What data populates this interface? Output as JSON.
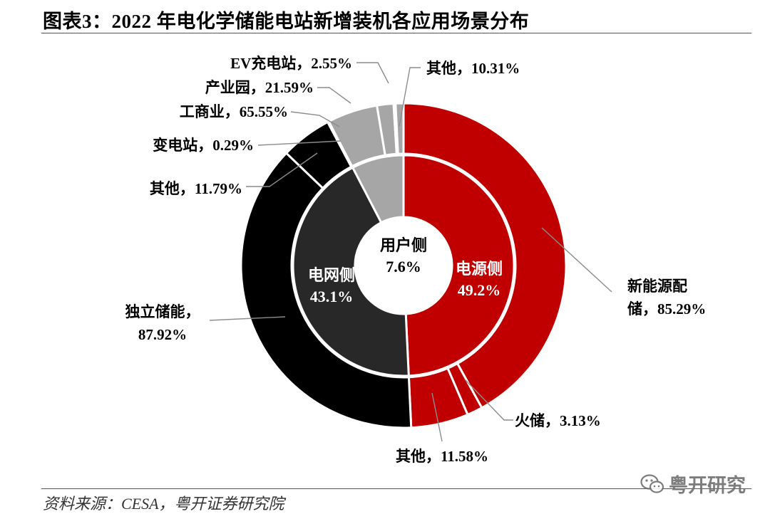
{
  "title": "图表3：2022 年电化学储能电站新增装机各应用场景分布",
  "source": "资料来源：CESA，粤开证券研究院",
  "watermark": "粤开研究",
  "colors": {
    "source_side": "#c00000",
    "grid_side": "#282828",
    "user_side": "#a6a6a6",
    "outer_grid": "#000000",
    "border": "#ffffff",
    "leader": "#8c8c8c"
  },
  "chart_data": {
    "type": "pie",
    "variant": "nested-donut",
    "title": "2022 年电化学储能电站新增装机各应用场景分布",
    "inner": {
      "categories": [
        "电源侧",
        "电网侧",
        "用户侧"
      ],
      "values": [
        49.2,
        43.1,
        7.6
      ],
      "labels": [
        {
          "name": "电源侧",
          "value": "49.2%"
        },
        {
          "name": "电网侧",
          "value": "43.1%"
        },
        {
          "name": "用户侧",
          "value": "7.6%"
        }
      ]
    },
    "outer": [
      {
        "parent": "电源侧",
        "name": "新能源配储",
        "value": 85.29,
        "label_line1": "新能源配",
        "label_line2": "储，85.29%"
      },
      {
        "parent": "电源侧",
        "name": "火储",
        "value": 3.13,
        "label": "火储，3.13%"
      },
      {
        "parent": "电源侧",
        "name": "其他",
        "value": 11.58,
        "label": "其他，11.58%"
      },
      {
        "parent": "电网侧",
        "name": "独立储能",
        "value": 87.92,
        "label_line1": "独立储能，",
        "label_line2": "87.92%"
      },
      {
        "parent": "电网侧",
        "name": "其他",
        "value": 11.79,
        "label": "其他，11.79%"
      },
      {
        "parent": "电网侧",
        "name": "变电站",
        "value": 0.29,
        "label": "变电站，0.29%"
      },
      {
        "parent": "用户侧",
        "name": "工商业",
        "value": 65.55,
        "label": "工商业，65.55%"
      },
      {
        "parent": "用户侧",
        "name": "产业园",
        "value": 21.59,
        "label": "产业园，21.59%"
      },
      {
        "parent": "用户侧",
        "name": "EV充电站",
        "value": 2.55,
        "label": "EV充电站，2.55%"
      },
      {
        "parent": "用户侧",
        "name": "其他",
        "value": 10.31,
        "label": "其他，10.31%"
      }
    ]
  }
}
